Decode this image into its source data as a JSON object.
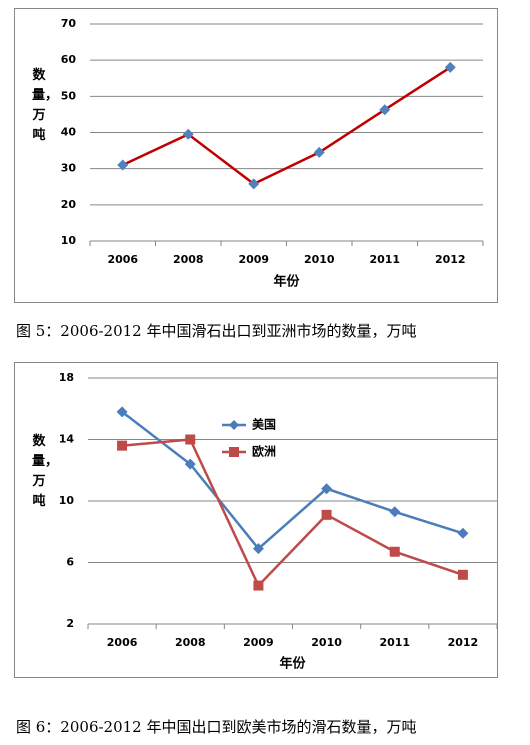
{
  "chart_data": [
    {
      "type": "line",
      "caption": "图 5：2006-2012 年中国滑石出口到亚洲市场的数量，万吨",
      "xlabel": "年份",
      "ylabel": "数量，万吨",
      "categories": [
        "2006",
        "2008",
        "2009",
        "2010",
        "2011",
        "2012"
      ],
      "series": [
        {
          "color": "#c00000",
          "marker": "diamond",
          "marker_color": "#4f81bd",
          "values": [
            31,
            39.5,
            25.8,
            34.5,
            46.3,
            58
          ]
        }
      ],
      "ylim": [
        10,
        70
      ],
      "yticks": [
        10,
        20,
        30,
        40,
        50,
        60,
        70
      ],
      "grid": true
    },
    {
      "type": "line",
      "caption": "图 6：2006-2012 年中国出口到欧美市场的滑石数量，万吨",
      "xlabel": "年份",
      "ylabel": "数量，万吨",
      "categories": [
        "2006",
        "2008",
        "2009",
        "2010",
        "2011",
        "2012"
      ],
      "series": [
        {
          "name": "美国",
          "color": "#4a7ebb",
          "marker": "diamond",
          "marker_color": "#4a7ebb",
          "values": [
            15.8,
            12.4,
            6.9,
            10.8,
            9.3,
            7.9
          ]
        },
        {
          "name": "欧洲",
          "color": "#be4b48",
          "marker": "square",
          "marker_color": "#be4b48",
          "values": [
            13.6,
            14.0,
            4.5,
            9.1,
            6.7,
            5.2
          ]
        }
      ],
      "ylim": [
        2,
        18
      ],
      "yticks": [
        2,
        6,
        10,
        14,
        18
      ],
      "grid": true,
      "legend": "top"
    }
  ]
}
